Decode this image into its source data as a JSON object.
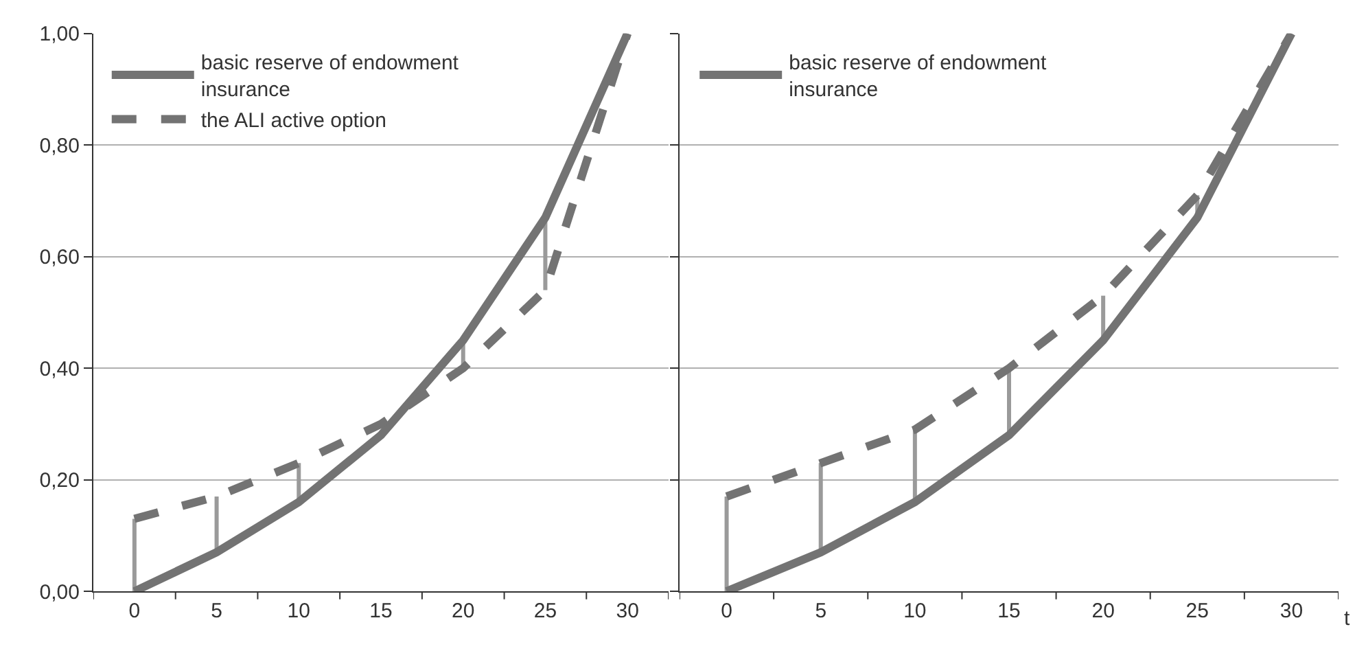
{
  "chart_data": [
    {
      "type": "line",
      "categories": [
        "0",
        "5",
        "10",
        "15",
        "20",
        "25",
        "30"
      ],
      "series": [
        {
          "name": "basic reserve of endowment insurance",
          "color": "#737373",
          "line_style": "solid",
          "values": [
            0.0,
            0.07,
            0.16,
            0.28,
            0.45,
            0.67,
            1.0
          ]
        },
        {
          "name": "the ALI active option",
          "color": "#737373",
          "line_style": "dashed",
          "values": [
            0.13,
            0.17,
            0.23,
            0.3,
            0.4,
            0.54,
            1.0
          ],
          "errors": [
            [
              0.0,
              0.13
            ],
            [
              0.07,
              0.17
            ],
            [
              0.16,
              0.23
            ],
            null,
            [
              0.4,
              0.45
            ],
            [
              0.54,
              0.67
            ],
            null
          ]
        }
      ],
      "ylim": [
        0,
        1
      ],
      "yticks": [
        {
          "value": 0,
          "label": "0,00"
        },
        {
          "value": 0.2,
          "label": "0,20"
        },
        {
          "value": 0.4,
          "label": "0,40"
        },
        {
          "value": 0.6,
          "label": "0,60"
        },
        {
          "value": 0.8,
          "label": "0,80"
        },
        {
          "value": 1,
          "label": "1,00"
        }
      ],
      "grid": "y",
      "legend": "top left",
      "marker": "none"
    },
    {
      "type": "line",
      "categories": [
        "0",
        "5",
        "10",
        "15",
        "20",
        "25",
        "30"
      ],
      "xlabel": "t",
      "series": [
        {
          "name": "basic reserve of endowment insurance",
          "color": "#737373",
          "line_style": "solid",
          "values": [
            0.0,
            0.07,
            0.16,
            0.28,
            0.45,
            0.67,
            1.0
          ]
        },
        {
          "color": "#737373",
          "line_style": "dashed",
          "values": [
            0.17,
            0.23,
            0.29,
            0.4,
            0.53,
            0.71,
            1.0
          ],
          "errors": [
            [
              0.0,
              0.17
            ],
            [
              0.07,
              0.23
            ],
            [
              0.16,
              0.29
            ],
            [
              0.28,
              0.4
            ],
            [
              0.45,
              0.53
            ],
            [
              0.67,
              0.71
            ],
            null
          ]
        }
      ],
      "ylim": [
        0,
        1
      ],
      "yticks": [
        0,
        0.2,
        0.4,
        0.6,
        0.8,
        1
      ],
      "grid": "y",
      "legend": "top left",
      "marker": "none",
      "tick_labels": "x"
    }
  ]
}
